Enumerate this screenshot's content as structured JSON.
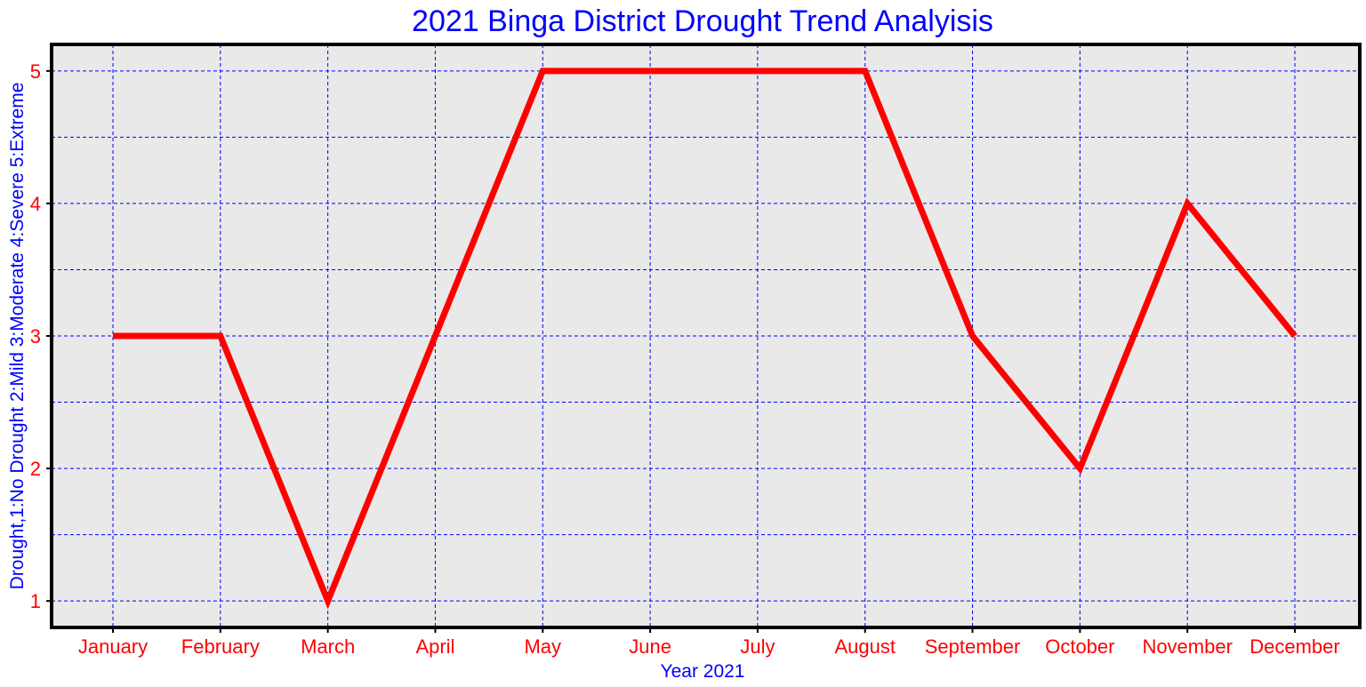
{
  "chart_data": {
    "type": "line",
    "title": "2021 Binga District Drought Trend Analyisis",
    "xlabel": "Year 2021",
    "ylabel": "Drought,1:No Drought 2:Mild 3:Moderate 4:Severe 5:Extreme",
    "categories": [
      "January",
      "February",
      "March",
      "April",
      "May",
      "June",
      "July",
      "August",
      "September",
      "October",
      "November",
      "December"
    ],
    "series": [
      {
        "values": [
          3,
          3,
          1,
          3,
          5,
          5,
          5,
          5,
          3,
          2,
          4,
          3
        ]
      }
    ],
    "ylim": [
      0.8,
      5.2
    ],
    "yticks": [
      1,
      2,
      3,
      4,
      5
    ],
    "grid": true,
    "legend": "none",
    "colors": {
      "line": "#ff0000",
      "grid": "#0000ff",
      "title": "#0000ff",
      "axis_label": "#0000ff",
      "tick_label": "#ff0000",
      "plot_background": "#e9e9e9",
      "frame": "#000000"
    }
  }
}
